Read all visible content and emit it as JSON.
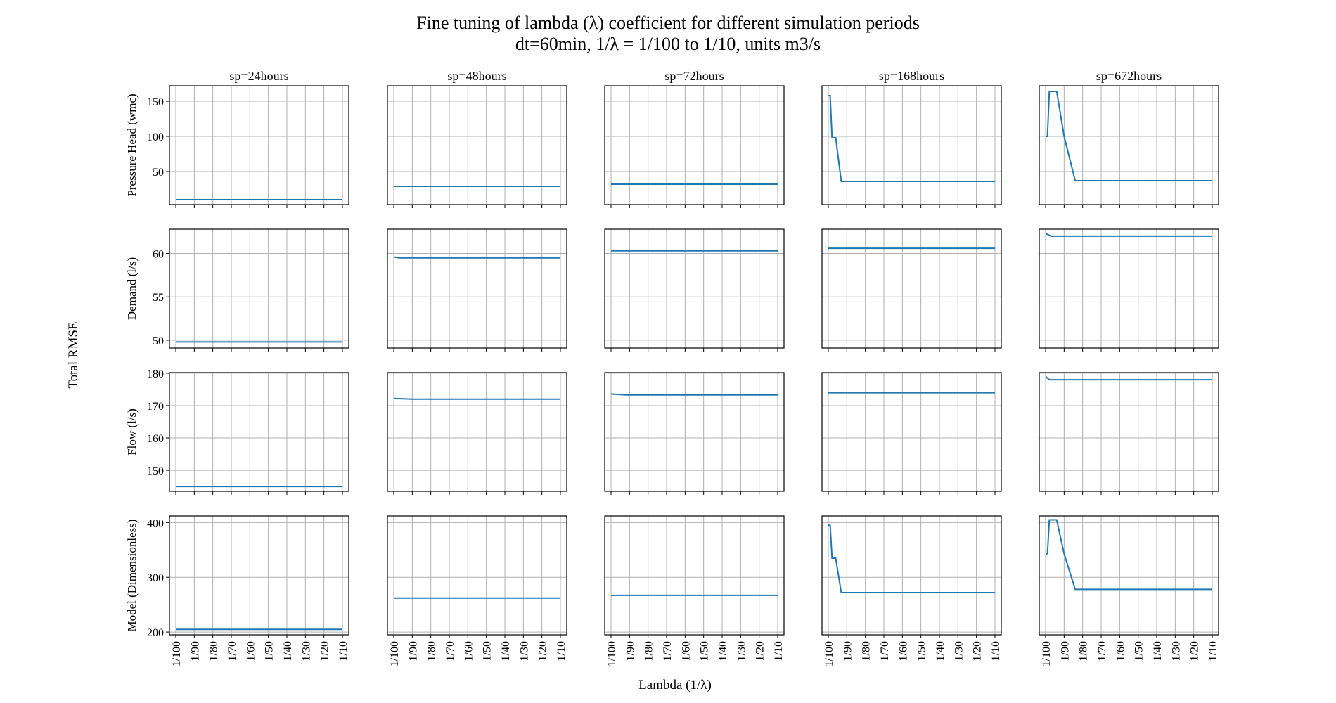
{
  "chart_data": {
    "type": "line",
    "title": "Fine tuning of lambda (λ) coefficient for different simulation periods",
    "subtitle": "dt=60min, 1/λ = 1/100 to 1/10, units m3/s",
    "xlabel": "Lambda (1/λ)",
    "ylabel": "Total RMSE",
    "x_ticks": [
      "1/100",
      "1/90",
      "1/80",
      "1/70",
      "1/60",
      "1/50",
      "1/40",
      "1/30",
      "1/20",
      "1/10"
    ],
    "x": [
      100,
      99,
      98,
      97,
      96,
      95,
      94,
      93,
      92,
      91,
      90,
      89,
      88,
      87,
      86,
      85,
      84,
      83,
      82,
      81,
      80,
      79,
      78,
      77,
      76,
      75,
      74,
      73,
      72,
      71,
      70,
      69,
      68,
      67,
      66,
      65,
      64,
      63,
      62,
      61,
      60,
      59,
      58,
      57,
      56,
      55,
      54,
      53,
      52,
      51,
      50,
      49,
      48,
      47,
      46,
      45,
      44,
      43,
      42,
      41,
      40,
      39,
      38,
      37,
      36,
      35,
      34,
      33,
      32,
      31,
      30,
      29,
      28,
      27,
      26,
      25,
      24,
      23,
      22,
      21,
      20,
      19,
      18,
      17,
      16,
      15,
      14,
      13,
      12,
      11,
      10
    ],
    "x_range": [
      100,
      10
    ],
    "columns": [
      "sp=24hours",
      "sp=48hours",
      "sp=72hours",
      "sp=168hours",
      "sp=672hours"
    ],
    "grid": true,
    "rows": [
      {
        "ylabel": "Pressure Head (wmc)",
        "ylim": [
          3,
          172
        ],
        "yticks": [
          "50",
          "100",
          "150"
        ],
        "ytick_values": [
          50,
          100,
          150
        ],
        "series": [
          {
            "points": [
              [
                100,
                10
              ],
              [
                10,
                10
              ]
            ]
          },
          {
            "points": [
              [
                100,
                29
              ],
              [
                10,
                29
              ]
            ]
          },
          {
            "points": [
              [
                100,
                32
              ],
              [
                10,
                32
              ]
            ]
          },
          {
            "points": [
              [
                100,
                158
              ],
              [
                99,
                158
              ],
              [
                98,
                98
              ],
              [
                96,
                98
              ],
              [
                93,
                36
              ],
              [
                10,
                36
              ]
            ]
          },
          {
            "points": [
              [
                100,
                100
              ],
              [
                99,
                100
              ],
              [
                98,
                164
              ],
              [
                94,
                164
              ],
              [
                90,
                100
              ],
              [
                84,
                37
              ],
              [
                10,
                37
              ]
            ]
          }
        ]
      },
      {
        "ylabel": "Demand (l/s)",
        "ylim": [
          49.1,
          62.8
        ],
        "yticks": [
          "50",
          "55",
          "60"
        ],
        "ytick_values": [
          50,
          55,
          60
        ],
        "series": [
          {
            "points": [
              [
                100,
                49.8
              ],
              [
                10,
                49.8
              ]
            ]
          },
          {
            "points": [
              [
                100,
                59.6
              ],
              [
                97,
                59.5
              ],
              [
                10,
                59.5
              ]
            ]
          },
          {
            "points": [
              [
                100,
                60.3
              ],
              [
                10,
                60.3
              ]
            ]
          },
          {
            "points": [
              [
                100,
                60.6
              ],
              [
                10,
                60.6
              ]
            ]
          },
          {
            "points": [
              [
                100,
                62.3
              ],
              [
                99,
                62.2
              ],
              [
                97,
                62.0
              ],
              [
                10,
                62.0
              ]
            ]
          }
        ]
      },
      {
        "ylabel": "Flow (l/s)",
        "ylim": [
          143.5,
          180.2
        ],
        "yticks": [
          "150",
          "160",
          "170",
          "180"
        ],
        "ytick_values": [
          150,
          160,
          170,
          180
        ],
        "series": [
          {
            "points": [
              [
                100,
                145
              ],
              [
                10,
                145
              ]
            ]
          },
          {
            "points": [
              [
                100,
                172.2
              ],
              [
                90,
                172
              ],
              [
                10,
                172
              ]
            ]
          },
          {
            "points": [
              [
                100,
                173.6
              ],
              [
                92,
                173.3
              ],
              [
                10,
                173.3
              ]
            ]
          },
          {
            "points": [
              [
                100,
                174
              ],
              [
                10,
                174
              ]
            ]
          },
          {
            "points": [
              [
                100,
                179
              ],
              [
                98,
                178
              ],
              [
                10,
                178
              ]
            ]
          }
        ]
      },
      {
        "ylabel": "Model (Dimensionless)",
        "ylim": [
          195,
          412
        ],
        "yticks": [
          "200",
          "300",
          "400"
        ],
        "ytick_values": [
          200,
          300,
          400
        ],
        "series": [
          {
            "points": [
              [
                100,
                205
              ],
              [
                10,
                205
              ]
            ]
          },
          {
            "points": [
              [
                100,
                262
              ],
              [
                10,
                262
              ]
            ]
          },
          {
            "points": [
              [
                100,
                267
              ],
              [
                10,
                267
              ]
            ]
          },
          {
            "points": [
              [
                100,
                395
              ],
              [
                99,
                395
              ],
              [
                98,
                335
              ],
              [
                96,
                335
              ],
              [
                93,
                272
              ],
              [
                10,
                272
              ]
            ]
          },
          {
            "points": [
              [
                100,
                343
              ],
              [
                99,
                343
              ],
              [
                98,
                405
              ],
              [
                94,
                405
              ],
              [
                90,
                343
              ],
              [
                84,
                278
              ],
              [
                10,
                278
              ]
            ]
          }
        ]
      }
    ]
  }
}
